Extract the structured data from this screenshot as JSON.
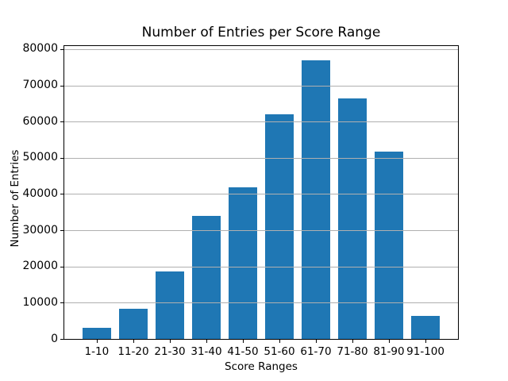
{
  "chart_data": {
    "type": "bar",
    "title": "Number of Entries per Score Range",
    "xlabel": "Score Ranges",
    "ylabel": "Number of Entries",
    "categories": [
      "1-10",
      "11-20",
      "21-30",
      "31-40",
      "41-50",
      "51-60",
      "61-70",
      "71-80",
      "81-90",
      "91-100"
    ],
    "values": [
      3100,
      8400,
      18700,
      34000,
      41800,
      62000,
      77000,
      66500,
      51700,
      6300
    ],
    "yticks": [
      0,
      10000,
      20000,
      30000,
      40000,
      50000,
      60000,
      70000,
      80000
    ],
    "ytick_labels": [
      "0",
      "10000",
      "20000",
      "30000",
      "40000",
      "50000",
      "60000",
      "70000",
      "80000"
    ],
    "ylim": [
      0,
      80850
    ],
    "bar_color": "#1f77b4",
    "grid": true,
    "grid_color": "#b0b0b0",
    "grid_position": "above-bars",
    "legend_position": "none",
    "spine_color": "#000000"
  }
}
